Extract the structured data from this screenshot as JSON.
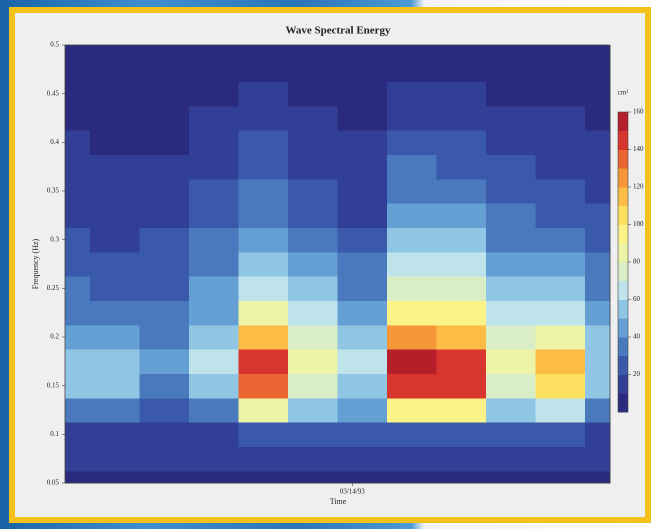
{
  "chart_data": {
    "type": "contour",
    "title": "Wave Spectral Energy",
    "xlabel": "Time",
    "ylabel": "Frequency (Hz)",
    "xlim": [
      0,
      11
    ],
    "xticks": [
      {
        "value": 5.8,
        "label": "03/14/93"
      }
    ],
    "ylim": [
      0.05,
      0.5
    ],
    "yticks": [
      0.05,
      0.1,
      0.15,
      0.2,
      0.25,
      0.3,
      0.35,
      0.4,
      0.45,
      0.5
    ],
    "x": [
      0,
      1,
      2,
      3,
      4,
      5,
      6,
      7,
      8,
      9,
      10,
      11
    ],
    "y": [
      0.05,
      0.075,
      0.1,
      0.125,
      0.15,
      0.175,
      0.2,
      0.225,
      0.25,
      0.275,
      0.3,
      0.325,
      0.35,
      0.375,
      0.4,
      0.425,
      0.45,
      0.475,
      0.5
    ],
    "z": [
      [
        4,
        4,
        5,
        5,
        6,
        6,
        5,
        5,
        5,
        5,
        4,
        4
      ],
      [
        10,
        10,
        10,
        10,
        12,
        12,
        10,
        12,
        12,
        10,
        10,
        10
      ],
      [
        18,
        18,
        16,
        18,
        25,
        22,
        20,
        28,
        28,
        22,
        22,
        18
      ],
      [
        35,
        35,
        28,
        38,
        80,
        50,
        40,
        95,
        95,
        55,
        65,
        38
      ],
      [
        52,
        52,
        38,
        58,
        135,
        75,
        55,
        145,
        145,
        78,
        105,
        55
      ],
      [
        55,
        50,
        40,
        60,
        140,
        80,
        60,
        150,
        148,
        80,
        110,
        58
      ],
      [
        45,
        42,
        36,
        55,
        110,
        70,
        52,
        120,
        118,
        70,
        85,
        50
      ],
      [
        38,
        35,
        32,
        48,
        85,
        60,
        45,
        95,
        92,
        60,
        65,
        44
      ],
      [
        32,
        28,
        28,
        42,
        68,
        50,
        38,
        78,
        75,
        50,
        52,
        38
      ],
      [
        26,
        22,
        24,
        36,
        56,
        42,
        30,
        64,
        62,
        42,
        42,
        32
      ],
      [
        22,
        18,
        20,
        30,
        46,
        34,
        24,
        52,
        50,
        36,
        34,
        26
      ],
      [
        18,
        14,
        16,
        25,
        38,
        28,
        18,
        44,
        42,
        30,
        28,
        21
      ],
      [
        14,
        12,
        13,
        20,
        32,
        22,
        14,
        37,
        35,
        25,
        22,
        17
      ],
      [
        12,
        10,
        11,
        16,
        26,
        18,
        12,
        30,
        28,
        20,
        17,
        14
      ],
      [
        10,
        9,
        9,
        13,
        20,
        14,
        10,
        24,
        22,
        16,
        13,
        11
      ],
      [
        8,
        8,
        8,
        10,
        15,
        11,
        9,
        18,
        17,
        12,
        10,
        9
      ],
      [
        6,
        6,
        7,
        8,
        11,
        9,
        8,
        13,
        12,
        9,
        8,
        7
      ],
      [
        4,
        5,
        5,
        6,
        8,
        7,
        6,
        9,
        9,
        7,
        6,
        5
      ],
      [
        3,
        4,
        4,
        4,
        5,
        5,
        4,
        6,
        6,
        5,
        4,
        4
      ]
    ],
    "colorbar": {
      "label": "cm²",
      "lim": [
        0,
        160
      ],
      "ticks": [
        20,
        40,
        60,
        80,
        100,
        120,
        140,
        160
      ],
      "levels": [
        0,
        10,
        20,
        30,
        40,
        50,
        60,
        70,
        80,
        90,
        100,
        110,
        120,
        130,
        140,
        150,
        160
      ],
      "colors": [
        "#2a2a7e",
        "#323f96",
        "#3b59aa",
        "#4a7abd",
        "#64a0d3",
        "#8fc6e4",
        "#bfe3ea",
        "#d9eec6",
        "#eef4a6",
        "#fbf288",
        "#fde060",
        "#fbbd45",
        "#f59638",
        "#ea6532",
        "#d8352e",
        "#b51f2a"
      ]
    }
  }
}
